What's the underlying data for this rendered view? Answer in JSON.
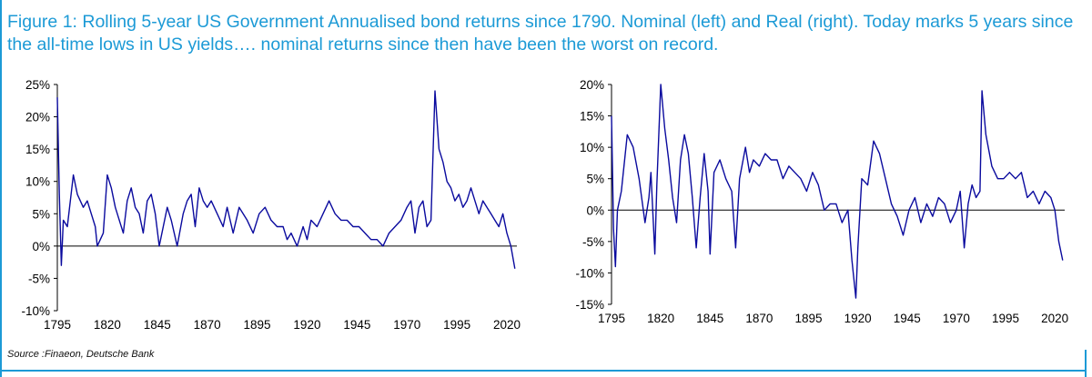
{
  "figure_title": "Figure 1: Rolling 5-year US Government Annualised bond returns since 1790. Nominal (left) and Real (right). Today marks 5 years since the all-time lows in US yields…. nominal returns since then have been the worst on record.",
  "source": "Source :Finaeon, Deutsche Bank",
  "colors": {
    "accent": "#1c9ad6",
    "series": "#0a0a9e"
  },
  "chart_data": [
    {
      "type": "line",
      "title": "",
      "xlabel": "",
      "ylabel": "",
      "xlim": [
        1795,
        2025
      ],
      "ylim": [
        -10,
        25
      ],
      "x_ticks": [
        1795,
        1820,
        1845,
        1870,
        1895,
        1920,
        1945,
        1970,
        1995,
        2020
      ],
      "y_ticks": [
        -10,
        -5,
        0,
        5,
        10,
        15,
        20,
        25
      ],
      "y_tick_labels": [
        "-10%",
        "-5%",
        "0%",
        "5%",
        "10%",
        "15%",
        "20%",
        "25%"
      ],
      "grid": false,
      "series": [
        {
          "x": [
            1795,
            1796,
            1797,
            1798,
            1800,
            1803,
            1805,
            1808,
            1810,
            1812,
            1814,
            1815,
            1818,
            1820,
            1822,
            1824,
            1826,
            1828,
            1830,
            1832,
            1834,
            1836,
            1838,
            1840,
            1842,
            1844,
            1846,
            1848,
            1850,
            1852,
            1855,
            1858,
            1860,
            1862,
            1864,
            1866,
            1868,
            1870,
            1872,
            1875,
            1878,
            1880,
            1883,
            1886,
            1890,
            1893,
            1896,
            1899,
            1902,
            1905,
            1908,
            1910,
            1912,
            1915,
            1918,
            1920,
            1922,
            1925,
            1928,
            1931,
            1934,
            1937,
            1940,
            1943,
            1946,
            1949,
            1952,
            1955,
            1958,
            1961,
            1964,
            1967,
            1970,
            1972,
            1974,
            1976,
            1978,
            1980,
            1982,
            1983,
            1984,
            1986,
            1988,
            1990,
            1992,
            1994,
            1996,
            1998,
            2000,
            2002,
            2004,
            2006,
            2008,
            2010,
            2012,
            2014,
            2016,
            2018,
            2020,
            2022,
            2024
          ],
          "y": [
            23,
            8,
            -3,
            4,
            3,
            11,
            8,
            6,
            7,
            5,
            3,
            0,
            2,
            11,
            9,
            6,
            4,
            2,
            7,
            9,
            6,
            5,
            2,
            7,
            8,
            5,
            0,
            3,
            6,
            4,
            0,
            5,
            7,
            8,
            3,
            9,
            7,
            6,
            7,
            5,
            3,
            6,
            2,
            6,
            4,
            2,
            5,
            6,
            4,
            3,
            3,
            1,
            2,
            0,
            3,
            1,
            4,
            3,
            5,
            7,
            5,
            4,
            4,
            3,
            3,
            2,
            1,
            1,
            0,
            2,
            3,
            4,
            6,
            7,
            2,
            6,
            7,
            3,
            4,
            14,
            24,
            15,
            13,
            10,
            9,
            7,
            8,
            6,
            7,
            9,
            7,
            5,
            7,
            6,
            5,
            4,
            3,
            5,
            2,
            0,
            -3.5
          ]
        }
      ]
    },
    {
      "type": "line",
      "title": "",
      "xlabel": "",
      "ylabel": "",
      "xlim": [
        1795,
        2025
      ],
      "ylim": [
        -15,
        20
      ],
      "x_ticks": [
        1795,
        1820,
        1845,
        1870,
        1895,
        1920,
        1945,
        1970,
        1995,
        2020
      ],
      "y_ticks": [
        -15,
        -10,
        -5,
        0,
        5,
        10,
        15,
        20
      ],
      "y_tick_labels": [
        "-15%",
        "-10%",
        "-5%",
        "0%",
        "5%",
        "10%",
        "15%",
        "20%"
      ],
      "grid": false,
      "series": [
        {
          "x": [
            1795,
            1796,
            1797,
            1798,
            1800,
            1803,
            1806,
            1809,
            1812,
            1814,
            1815,
            1817,
            1818,
            1820,
            1822,
            1824,
            1826,
            1828,
            1830,
            1832,
            1834,
            1836,
            1838,
            1840,
            1842,
            1844,
            1845,
            1847,
            1850,
            1853,
            1856,
            1858,
            1860,
            1863,
            1865,
            1867,
            1870,
            1873,
            1876,
            1879,
            1882,
            1885,
            1888,
            1891,
            1894,
            1897,
            1900,
            1903,
            1906,
            1909,
            1912,
            1915,
            1917,
            1919,
            1920,
            1922,
            1925,
            1928,
            1931,
            1934,
            1937,
            1940,
            1943,
            1946,
            1949,
            1952,
            1955,
            1958,
            1961,
            1964,
            1967,
            1970,
            1972,
            1974,
            1976,
            1978,
            1980,
            1982,
            1983,
            1985,
            1988,
            1991,
            1994,
            1997,
            2000,
            2003,
            2006,
            2009,
            2012,
            2015,
            2018,
            2020,
            2022,
            2024
          ],
          "y": [
            15,
            -3,
            -9,
            0,
            3,
            12,
            10,
            5,
            -2,
            2,
            6,
            -7,
            4,
            20,
            13,
            8,
            2,
            -2,
            8,
            12,
            9,
            2,
            -6,
            2,
            9,
            3,
            -7,
            6,
            8,
            5,
            3,
            -6,
            5,
            10,
            6,
            8,
            7,
            9,
            8,
            8,
            5,
            7,
            6,
            5,
            3,
            6,
            4,
            0,
            1,
            1,
            -2,
            0,
            -8,
            -14,
            -6,
            5,
            4,
            11,
            9,
            5,
            1,
            -1,
            -4,
            0,
            2,
            -2,
            1,
            -1,
            2,
            1,
            -2,
            0,
            3,
            -6,
            1,
            4,
            2,
            3,
            19,
            12,
            7,
            5,
            5,
            6,
            5,
            6,
            2,
            3,
            1,
            3,
            2,
            0,
            -5,
            -8
          ]
        }
      ]
    }
  ]
}
